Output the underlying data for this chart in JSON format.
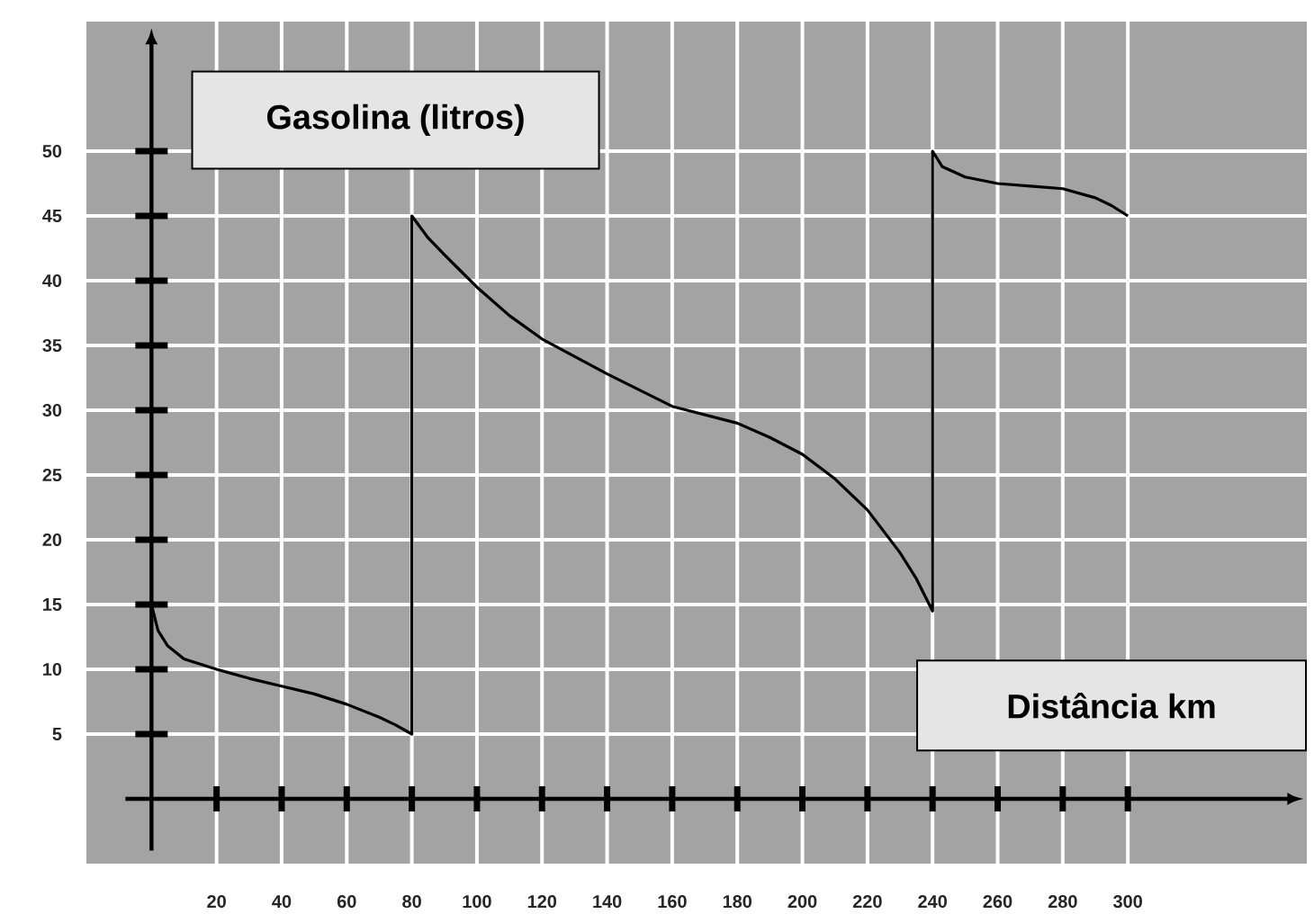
{
  "chart_data": {
    "type": "line",
    "xlabel": "Distância km",
    "ylabel": "Gasolina (litros)",
    "x": [
      0,
      2,
      5,
      10,
      20,
      30,
      40,
      50,
      60,
      70,
      75,
      80,
      80,
      85,
      90,
      100,
      110,
      120,
      140,
      160,
      180,
      190,
      200,
      210,
      220,
      230,
      235,
      240,
      240,
      243,
      250,
      260,
      270,
      280,
      290,
      295,
      300
    ],
    "values": [
      15,
      13,
      11.8,
      10.8,
      10,
      9.3,
      8.7,
      8.1,
      7.3,
      6.3,
      5.7,
      5,
      45,
      43.3,
      42,
      39.5,
      37.3,
      35.5,
      32.8,
      30.3,
      29,
      27.9,
      26.6,
      24.7,
      22.3,
      19,
      17,
      14.5,
      50,
      48.8,
      48,
      47.5,
      47.3,
      47.1,
      46.4,
      45.8,
      45
    ],
    "color": "#000000",
    "xlim": [
      -20,
      355
    ],
    "ylim": [
      -5,
      60
    ],
    "xticks": [
      20,
      40,
      60,
      80,
      100,
      120,
      140,
      160,
      180,
      200,
      220,
      240,
      260,
      280,
      300
    ],
    "yticks": [
      5,
      10,
      15,
      20,
      25,
      30,
      35,
      40,
      45,
      50
    ],
    "grid": true
  }
}
